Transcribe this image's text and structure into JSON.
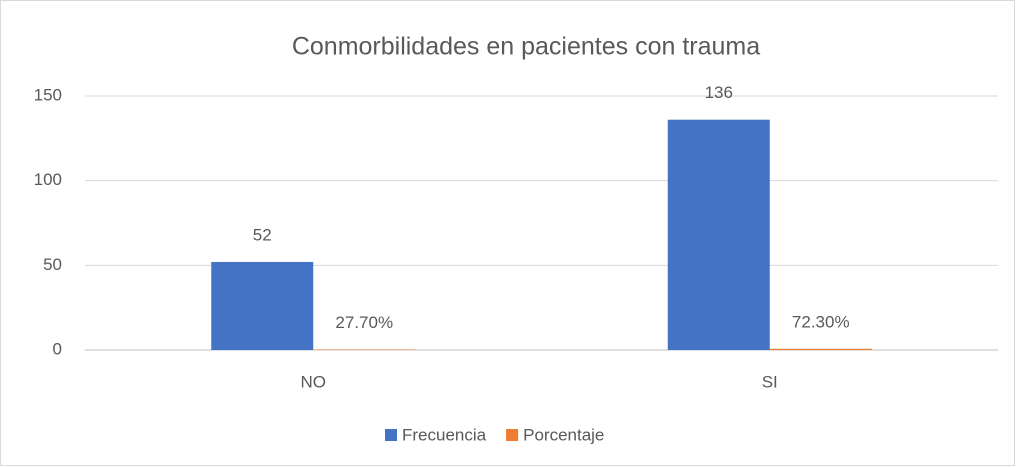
{
  "chart_data": {
    "type": "bar",
    "title": "Conmorbilidades en pacientes con trauma",
    "categories": [
      "NO",
      "SI"
    ],
    "series": [
      {
        "name": "Frecuencia",
        "color": "#4472c4",
        "values": [
          52,
          136
        ]
      },
      {
        "name": "Porcentaje",
        "color": "#ed7d31",
        "values": [
          0.277,
          0.723
        ],
        "value_labels": [
          "27.70%",
          "72.30%"
        ]
      }
    ],
    "ylim": [
      0,
      150
    ],
    "yticks": [
      0,
      50,
      100,
      150
    ],
    "grid": true,
    "legend": "bottom"
  }
}
